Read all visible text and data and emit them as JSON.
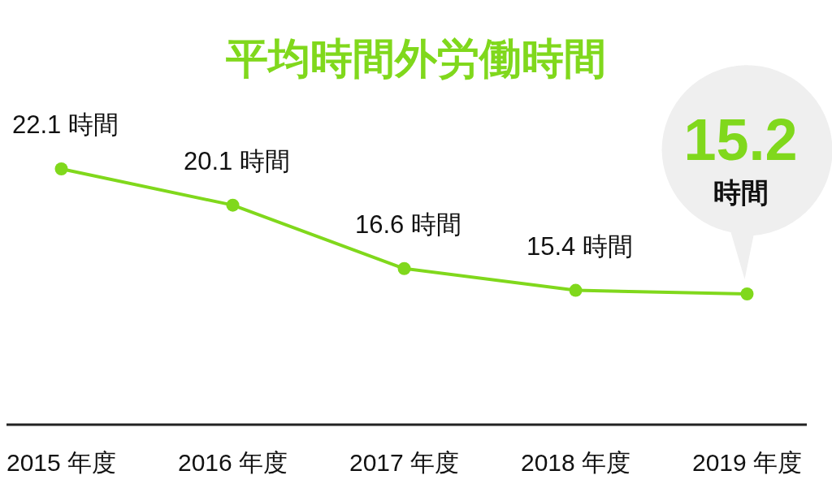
{
  "chart_data": {
    "type": "line",
    "title": "平均時間外労働時間",
    "categories": [
      "2015 年度",
      "2016 年度",
      "2017 年度",
      "2018 年度",
      "2019 年度"
    ],
    "series": [
      {
        "color": "#80d81c",
        "values": [
          22.1,
          20.1,
          16.6,
          15.4,
          15.2
        ],
        "value_labels": [
          "22.1 時間",
          "20.1 時間",
          "16.6 時間",
          "15.4 時間",
          "15.2 時間"
        ]
      }
    ],
    "marker": "circle",
    "line_style": "solid"
  }
}
